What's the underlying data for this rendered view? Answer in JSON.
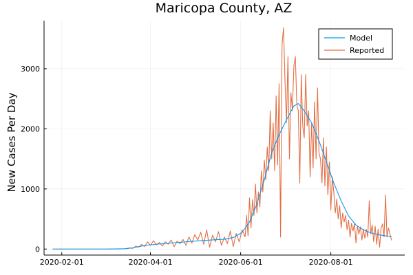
{
  "chart_data": {
    "type": "line",
    "title": "Maricopa County, AZ",
    "xlabel": "",
    "ylabel": "New Cases Per Day",
    "x_type": "date",
    "xlim": [
      "2020-01-20",
      "2020-09-20"
    ],
    "ylim": [
      -100,
      3800
    ],
    "x_ticks": [
      "2020-02-01",
      "2020-04-01",
      "2020-06-01",
      "2020-08-01"
    ],
    "y_ticks": [
      0,
      1000,
      2000,
      3000
    ],
    "grid": true,
    "legend_position": "top-right",
    "series": [
      {
        "name": "Model",
        "color": "#009af9",
        "points": [
          [
            "2020-01-26",
            0
          ],
          [
            "2020-02-15",
            0
          ],
          [
            "2020-03-01",
            0
          ],
          [
            "2020-03-15",
            5
          ],
          [
            "2020-03-20",
            20
          ],
          [
            "2020-03-25",
            45
          ],
          [
            "2020-03-30",
            65
          ],
          [
            "2020-04-05",
            80
          ],
          [
            "2020-04-15",
            100
          ],
          [
            "2020-04-25",
            120
          ],
          [
            "2020-05-05",
            140
          ],
          [
            "2020-05-15",
            155
          ],
          [
            "2020-05-22",
            165
          ],
          [
            "2020-05-28",
            200
          ],
          [
            "2020-06-02",
            280
          ],
          [
            "2020-06-07",
            450
          ],
          [
            "2020-06-12",
            750
          ],
          [
            "2020-06-17",
            1150
          ],
          [
            "2020-06-22",
            1600
          ],
          [
            "2020-06-27",
            1900
          ],
          [
            "2020-07-02",
            2150
          ],
          [
            "2020-07-07",
            2380
          ],
          [
            "2020-07-10",
            2420
          ],
          [
            "2020-07-14",
            2300
          ],
          [
            "2020-07-19",
            2100
          ],
          [
            "2020-07-24",
            1800
          ],
          [
            "2020-07-29",
            1450
          ],
          [
            "2020-08-03",
            1100
          ],
          [
            "2020-08-08",
            800
          ],
          [
            "2020-08-13",
            550
          ],
          [
            "2020-08-18",
            400
          ],
          [
            "2020-08-23",
            320
          ],
          [
            "2020-08-28",
            270
          ],
          [
            "2020-09-02",
            240
          ],
          [
            "2020-09-07",
            220
          ],
          [
            "2020-09-11",
            210
          ]
        ]
      },
      {
        "name": "Reported",
        "color": "#e26f46",
        "points": [
          [
            "2020-01-26",
            0
          ],
          [
            "2020-02-15",
            0
          ],
          [
            "2020-03-01",
            0
          ],
          [
            "2020-03-10",
            0
          ],
          [
            "2020-03-15",
            5
          ],
          [
            "2020-03-18",
            20
          ],
          [
            "2020-03-20",
            10
          ],
          [
            "2020-03-22",
            50
          ],
          [
            "2020-03-24",
            30
          ],
          [
            "2020-03-26",
            80
          ],
          [
            "2020-03-28",
            40
          ],
          [
            "2020-03-30",
            120
          ],
          [
            "2020-04-01",
            60
          ],
          [
            "2020-04-03",
            140
          ],
          [
            "2020-04-05",
            70
          ],
          [
            "2020-04-07",
            110
          ],
          [
            "2020-04-09",
            50
          ],
          [
            "2020-04-11",
            120
          ],
          [
            "2020-04-13",
            80
          ],
          [
            "2020-04-15",
            150
          ],
          [
            "2020-04-17",
            40
          ],
          [
            "2020-04-19",
            130
          ],
          [
            "2020-04-21",
            90
          ],
          [
            "2020-04-23",
            160
          ],
          [
            "2020-04-25",
            60
          ],
          [
            "2020-04-27",
            200
          ],
          [
            "2020-04-29",
            100
          ],
          [
            "2020-05-01",
            240
          ],
          [
            "2020-05-03",
            150
          ],
          [
            "2020-05-05",
            280
          ],
          [
            "2020-05-07",
            80
          ],
          [
            "2020-05-09",
            320
          ],
          [
            "2020-05-11",
            30
          ],
          [
            "2020-05-13",
            230
          ],
          [
            "2020-05-15",
            120
          ],
          [
            "2020-05-17",
            290
          ],
          [
            "2020-05-19",
            60
          ],
          [
            "2020-05-21",
            200
          ],
          [
            "2020-05-23",
            90
          ],
          [
            "2020-05-25",
            300
          ],
          [
            "2020-05-27",
            40
          ],
          [
            "2020-05-29",
            260
          ],
          [
            "2020-05-31",
            120
          ],
          [
            "2020-06-02",
            320
          ],
          [
            "2020-06-04",
            200
          ],
          [
            "2020-06-05",
            560
          ],
          [
            "2020-06-06",
            220
          ],
          [
            "2020-06-07",
            850
          ],
          [
            "2020-06-08",
            350
          ],
          [
            "2020-06-09",
            820
          ],
          [
            "2020-06-10",
            560
          ],
          [
            "2020-06-11",
            1080
          ],
          [
            "2020-06-12",
            600
          ],
          [
            "2020-06-13",
            950
          ],
          [
            "2020-06-14",
            700
          ],
          [
            "2020-06-15",
            1300
          ],
          [
            "2020-06-16",
            950
          ],
          [
            "2020-06-17",
            1480
          ],
          [
            "2020-06-18",
            1150
          ],
          [
            "2020-06-19",
            1700
          ],
          [
            "2020-06-20",
            1300
          ],
          [
            "2020-06-21",
            2300
          ],
          [
            "2020-06-22",
            1500
          ],
          [
            "2020-06-23",
            2100
          ],
          [
            "2020-06-24",
            1300
          ],
          [
            "2020-06-25",
            2550
          ],
          [
            "2020-06-26",
            1400
          ],
          [
            "2020-06-27",
            2750
          ],
          [
            "2020-06-28",
            200
          ],
          [
            "2020-06-29",
            3400
          ],
          [
            "2020-06-30",
            3680
          ],
          [
            "2020-07-01",
            2800
          ],
          [
            "2020-07-02",
            2100
          ],
          [
            "2020-07-03",
            3200
          ],
          [
            "2020-07-04",
            1500
          ],
          [
            "2020-07-05",
            2600
          ],
          [
            "2020-07-06",
            2300
          ],
          [
            "2020-07-07",
            3050
          ],
          [
            "2020-07-08",
            3200
          ],
          [
            "2020-07-09",
            2400
          ],
          [
            "2020-07-10",
            2300
          ],
          [
            "2020-07-11",
            1100
          ],
          [
            "2020-07-12",
            2900
          ],
          [
            "2020-07-13",
            2050
          ],
          [
            "2020-07-14",
            1850
          ],
          [
            "2020-07-15",
            2900
          ],
          [
            "2020-07-16",
            2050
          ],
          [
            "2020-07-17",
            2300
          ],
          [
            "2020-07-18",
            1200
          ],
          [
            "2020-07-19",
            2100
          ],
          [
            "2020-07-20",
            1350
          ],
          [
            "2020-07-21",
            2450
          ],
          [
            "2020-07-22",
            1500
          ],
          [
            "2020-07-23",
            2680
          ],
          [
            "2020-07-24",
            1600
          ],
          [
            "2020-07-25",
            1500
          ],
          [
            "2020-07-26",
            1100
          ],
          [
            "2020-07-27",
            1850
          ],
          [
            "2020-07-28",
            1050
          ],
          [
            "2020-07-29",
            1700
          ],
          [
            "2020-07-30",
            900
          ],
          [
            "2020-07-31",
            1450
          ],
          [
            "2020-08-01",
            650
          ],
          [
            "2020-08-02",
            1200
          ],
          [
            "2020-08-03",
            950
          ],
          [
            "2020-08-04",
            600
          ],
          [
            "2020-08-05",
            830
          ],
          [
            "2020-08-06",
            500
          ],
          [
            "2020-08-07",
            720
          ],
          [
            "2020-08-08",
            350
          ],
          [
            "2020-08-09",
            600
          ],
          [
            "2020-08-10",
            450
          ],
          [
            "2020-08-11",
            560
          ],
          [
            "2020-08-12",
            320
          ],
          [
            "2020-08-13",
            480
          ],
          [
            "2020-08-14",
            200
          ],
          [
            "2020-08-15",
            430
          ],
          [
            "2020-08-16",
            300
          ],
          [
            "2020-08-17",
            420
          ],
          [
            "2020-08-18",
            100
          ],
          [
            "2020-08-19",
            380
          ],
          [
            "2020-08-20",
            250
          ],
          [
            "2020-08-21",
            370
          ],
          [
            "2020-08-22",
            150
          ],
          [
            "2020-08-23",
            330
          ],
          [
            "2020-08-24",
            180
          ],
          [
            "2020-08-25",
            330
          ],
          [
            "2020-08-26",
            200
          ],
          [
            "2020-08-27",
            800
          ],
          [
            "2020-08-28",
            250
          ],
          [
            "2020-08-29",
            400
          ],
          [
            "2020-08-30",
            120
          ],
          [
            "2020-08-31",
            380
          ],
          [
            "2020-09-01",
            80
          ],
          [
            "2020-09-02",
            330
          ],
          [
            "2020-09-03",
            30
          ],
          [
            "2020-09-04",
            350
          ],
          [
            "2020-09-05",
            420
          ],
          [
            "2020-09-06",
            200
          ],
          [
            "2020-09-07",
            900
          ],
          [
            "2020-09-08",
            200
          ],
          [
            "2020-09-09",
            350
          ],
          [
            "2020-09-10",
            250
          ],
          [
            "2020-09-11",
            150
          ]
        ]
      }
    ]
  }
}
